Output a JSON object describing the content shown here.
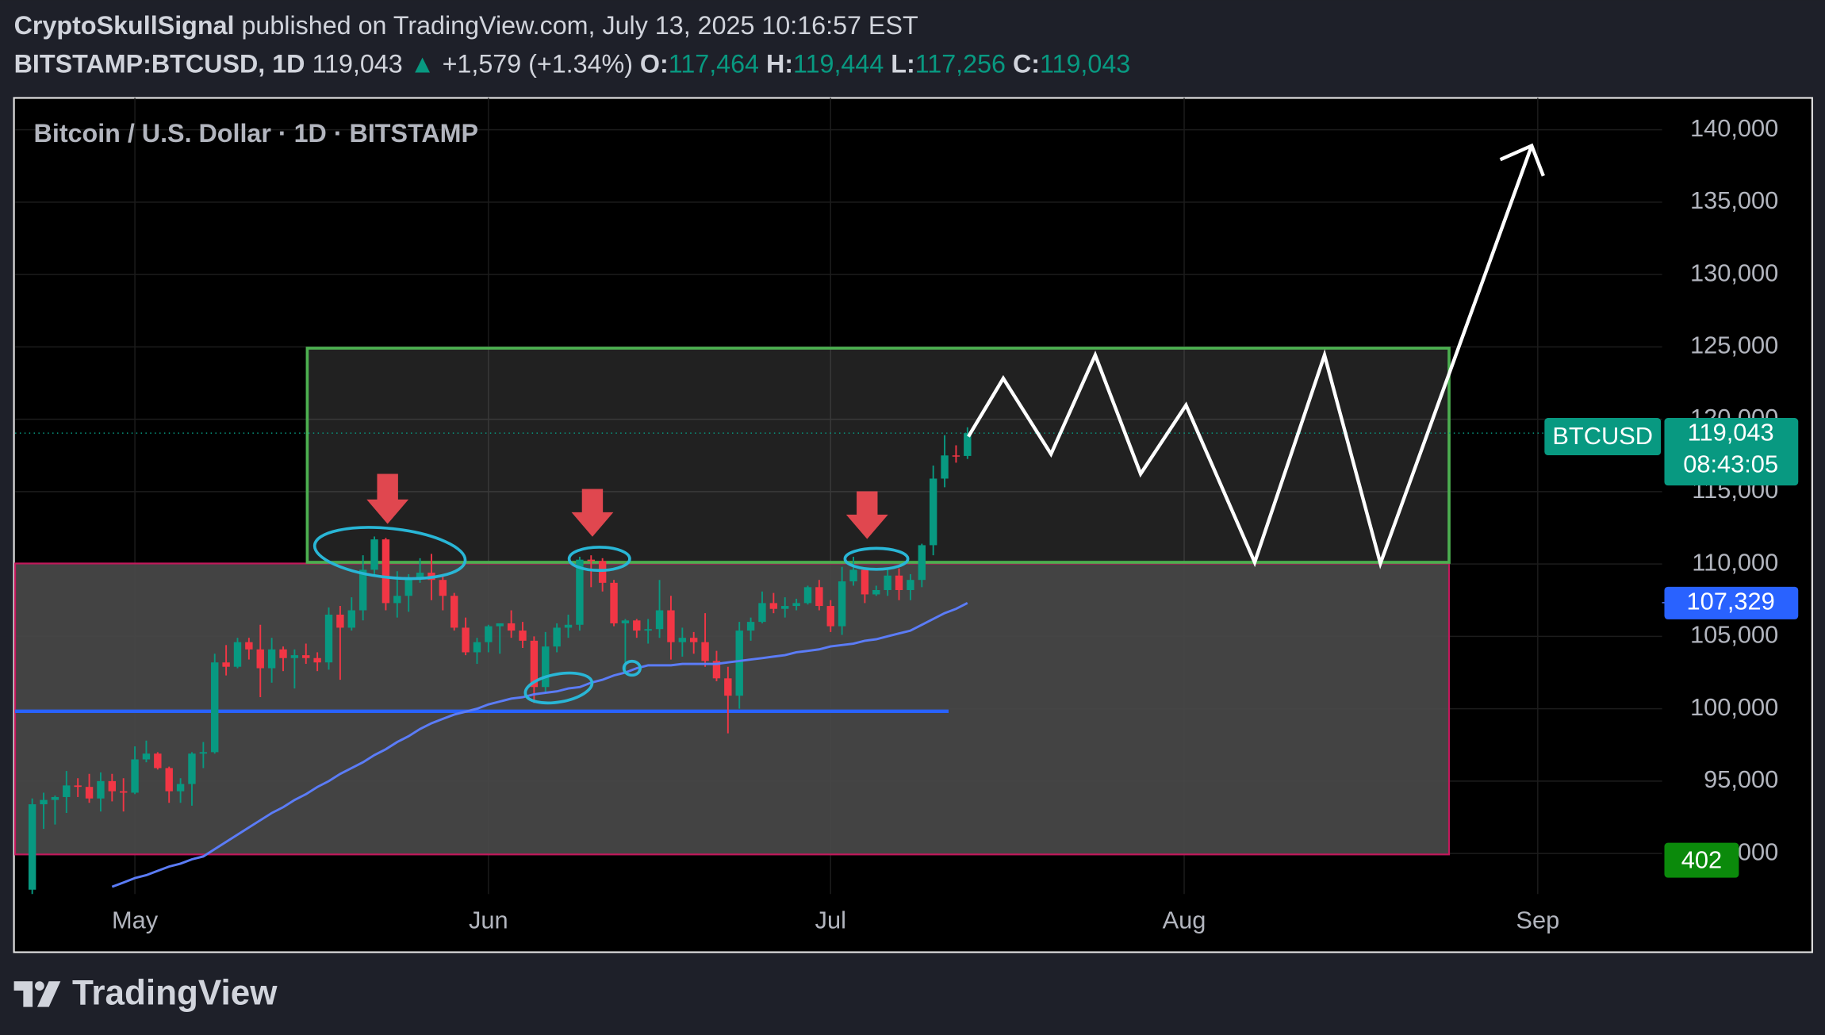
{
  "header": {
    "author": "CryptoSkullSignal",
    "published": "published on TradingView.com, July 13, 2025 10:16:57 EST",
    "symbol": "BITSTAMP:BTCUSD, 1D",
    "last": "119,043",
    "change_arrow": "▲",
    "change": "+1,579 (+1.34%)",
    "o_label": "O:",
    "open": "117,464",
    "h_label": "H:",
    "high": "119,444",
    "l_label": "L:",
    "low": "117,256",
    "c_label": "C:",
    "close": "119,043"
  },
  "chart_data": {
    "type": "candlestick",
    "title": "Bitcoin / U.S. Dollar · 1D · BITSTAMP",
    "up_color": "#089981",
    "down_color": "#f23645",
    "ohlc": [
      [
        87500,
        93800,
        87200,
        93400
      ],
      [
        93400,
        94200,
        91700,
        93700
      ],
      [
        93700,
        94000,
        92000,
        93900
      ],
      [
        93900,
        95700,
        92800,
        94700
      ],
      [
        94700,
        95200,
        93900,
        94600
      ],
      [
        94600,
        95500,
        93500,
        93800
      ],
      [
        93800,
        95600,
        92900,
        95000
      ],
      [
        95000,
        95500,
        93600,
        94300
      ],
      [
        94300,
        95200,
        92900,
        94200
      ],
      [
        94200,
        97400,
        94100,
        96500
      ],
      [
        96500,
        97800,
        96300,
        96900
      ],
      [
        96900,
        97000,
        95800,
        95900
      ],
      [
        95900,
        96000,
        93500,
        94300
      ],
      [
        94300,
        95200,
        93500,
        94800
      ],
      [
        94800,
        97000,
        93300,
        96900
      ],
      [
        96900,
        97700,
        95900,
        97000
      ],
      [
        97000,
        103800,
        96900,
        103200
      ],
      [
        103200,
        104400,
        102300,
        102900
      ],
      [
        102900,
        104900,
        102800,
        104600
      ],
      [
        104600,
        104900,
        103400,
        104100
      ],
      [
        104100,
        105800,
        100800,
        102800
      ],
      [
        102800,
        104900,
        101800,
        104100
      ],
      [
        104100,
        104300,
        102600,
        103500
      ],
      [
        103500,
        104100,
        101400,
        103700
      ],
      [
        103700,
        104500,
        103100,
        103500
      ],
      [
        103500,
        103900,
        102600,
        103200
      ],
      [
        103200,
        107000,
        102700,
        106500
      ],
      [
        106500,
        107100,
        102000,
        105600
      ],
      [
        105600,
        107700,
        105400,
        106800
      ],
      [
        106800,
        110600,
        106100,
        109600
      ],
      [
        109600,
        111900,
        109300,
        111700
      ],
      [
        111700,
        111800,
        106800,
        107300
      ],
      [
        107300,
        109500,
        106300,
        107800
      ],
      [
        107800,
        109300,
        106700,
        109000
      ],
      [
        109000,
        110400,
        108700,
        109400
      ],
      [
        109400,
        110700,
        107500,
        108900
      ],
      [
        108900,
        109300,
        106800,
        107800
      ],
      [
        107800,
        108000,
        105400,
        105600
      ],
      [
        105600,
        106300,
        103700,
        103900
      ],
      [
        103900,
        104900,
        103100,
        104600
      ],
      [
        104600,
        105800,
        103900,
        105700
      ],
      [
        105700,
        105900,
        103800,
        105900
      ],
      [
        105900,
        106800,
        104900,
        105400
      ],
      [
        105400,
        106000,
        104200,
        104700
      ],
      [
        104700,
        105000,
        100400,
        101500
      ],
      [
        101500,
        105300,
        101100,
        104300
      ],
      [
        104300,
        105900,
        103900,
        105600
      ],
      [
        105600,
        106500,
        104900,
        105800
      ],
      [
        105800,
        110500,
        105400,
        110300
      ],
      [
        110300,
        110600,
        108400,
        110200
      ],
      [
        110200,
        110400,
        108100,
        108700
      ],
      [
        108700,
        108900,
        105700,
        105900
      ],
      [
        105900,
        106200,
        102700,
        106100
      ],
      [
        106100,
        106200,
        104900,
        105400
      ],
      [
        105400,
        106200,
        104500,
        105500
      ],
      [
        105500,
        108900,
        104900,
        106800
      ],
      [
        106800,
        107800,
        103400,
        104600
      ],
      [
        104600,
        105600,
        103600,
        104900
      ],
      [
        104900,
        105300,
        103800,
        104600
      ],
      [
        104600,
        106600,
        102900,
        103300
      ],
      [
        103300,
        104000,
        101900,
        102100
      ],
      [
        102100,
        102900,
        98300,
        100900
      ],
      [
        100900,
        106000,
        100000,
        105400
      ],
      [
        105400,
        106300,
        104700,
        106000
      ],
      [
        106000,
        108100,
        105900,
        107300
      ],
      [
        107300,
        108000,
        106600,
        106900
      ],
      [
        106900,
        107700,
        106300,
        107100
      ],
      [
        107100,
        107600,
        106800,
        107300
      ],
      [
        107300,
        108500,
        107200,
        108400
      ],
      [
        108400,
        108900,
        106800,
        107100
      ],
      [
        107100,
        107500,
        105300,
        105700
      ],
      [
        105700,
        109800,
        105100,
        108800
      ],
      [
        108800,
        110500,
        108500,
        109600
      ],
      [
        109600,
        109700,
        107300,
        107900
      ],
      [
        107900,
        108500,
        107800,
        108200
      ],
      [
        108200,
        109700,
        107800,
        109200
      ],
      [
        109200,
        109700,
        107500,
        108200
      ],
      [
        108200,
        109300,
        107500,
        108900
      ],
      [
        108900,
        111400,
        108400,
        111300
      ],
      [
        111300,
        116800,
        110600,
        115900
      ],
      [
        115900,
        118900,
        115300,
        117500
      ],
      [
        117500,
        118200,
        117000,
        117464
      ],
      [
        117464,
        119444,
        117256,
        119043
      ]
    ],
    "ma": {
      "color": "#5b7cf7",
      "values": [
        null,
        null,
        null,
        null,
        null,
        null,
        null,
        87700,
        88000,
        88300,
        88500,
        88800,
        89100,
        89300,
        89600,
        89800,
        90300,
        90800,
        91300,
        91800,
        92300,
        92800,
        93200,
        93700,
        94100,
        94600,
        95000,
        95500,
        95900,
        96300,
        96800,
        97200,
        97700,
        98100,
        98600,
        99000,
        99300,
        99600,
        99800,
        100000,
        100300,
        100500,
        100700,
        100800,
        101000,
        101100,
        101200,
        101400,
        101500,
        101800,
        102000,
        102300,
        102500,
        102800,
        103000,
        103000,
        103000,
        103100,
        103100,
        103100,
        103100,
        103200,
        103300,
        103400,
        103500,
        103600,
        103700,
        103900,
        104000,
        104100,
        104300,
        104400,
        104500,
        104700,
        104800,
        105000,
        105200,
        105400,
        105800,
        106200,
        106600,
        106900,
        107300
      ]
    },
    "xlim": [
      -1.5,
      142.9
    ],
    "ylim": [
      87200,
      142200
    ],
    "xticks": [
      {
        "value": 9,
        "label": "May"
      },
      {
        "value": 40,
        "label": "Jun"
      },
      {
        "value": 70,
        "label": "Jul"
      },
      {
        "value": 101,
        "label": "Aug"
      },
      {
        "value": 132,
        "label": "Sep"
      }
    ],
    "yticks": [
      {
        "value": 90000,
        "label": "90,000"
      },
      {
        "value": 95000,
        "label": "95,000"
      },
      {
        "value": 100000,
        "label": "100,000"
      },
      {
        "value": 105000,
        "label": "105,000"
      },
      {
        "value": 110000,
        "label": "110,000"
      },
      {
        "value": 115000,
        "label": "115,000"
      },
      {
        "value": 120000,
        "label": "120,000"
      },
      {
        "value": 125000,
        "label": "125,000"
      },
      {
        "value": 130000,
        "label": "130,000"
      },
      {
        "value": 135000,
        "label": "135,000"
      },
      {
        "value": 140000,
        "label": "140,000"
      }
    ],
    "grid": true,
    "symbol_label": "BTCUSD",
    "last_price": {
      "value": 119043,
      "label": "119,043"
    },
    "countdown": "08:43:05",
    "ma_last": {
      "value": 107329,
      "label": "107,329"
    },
    "volume_last": 402
  },
  "footer": {
    "logo_text": "TradingView"
  }
}
